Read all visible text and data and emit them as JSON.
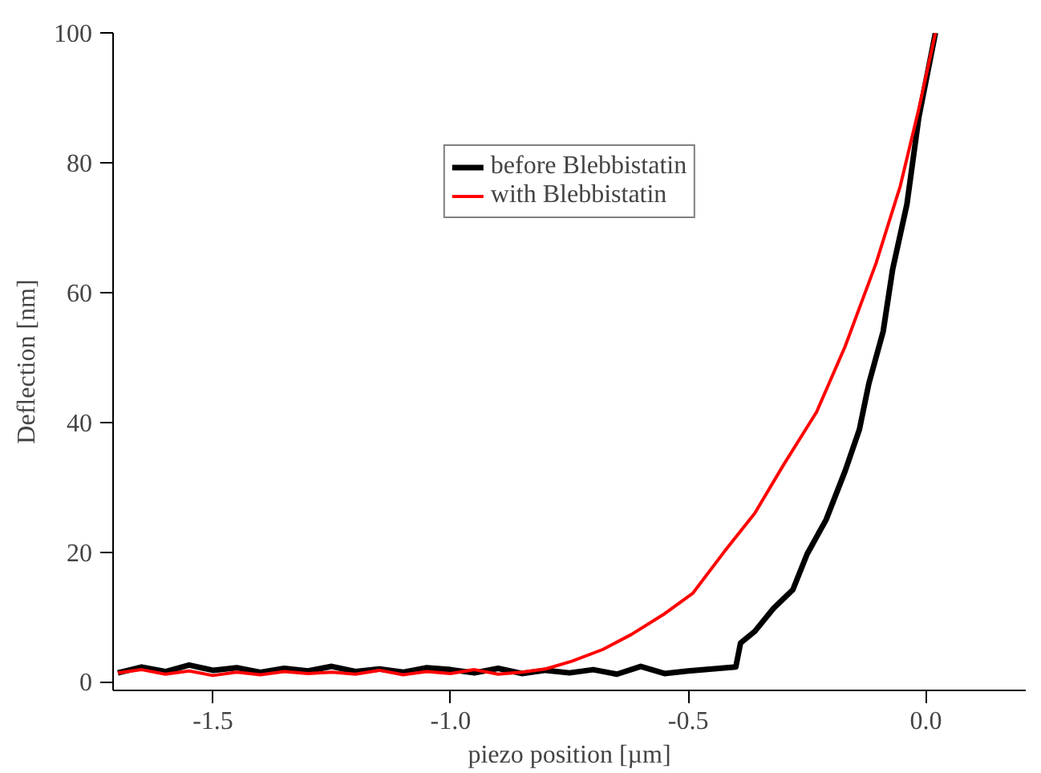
{
  "chart_data": {
    "type": "line",
    "xlabel": "piezo position [µm]",
    "ylabel": "Deflection [nm]",
    "xlim": [
      -1.71,
      0.21
    ],
    "ylim": [
      -1.3,
      100
    ],
    "xticks": [
      {
        "value": -1.5,
        "label": "-1.5"
      },
      {
        "value": -1.0,
        "label": "-1.0"
      },
      {
        "value": -0.5,
        "label": "-0.5"
      },
      {
        "value": 0.0,
        "label": "0.0"
      }
    ],
    "yticks": [
      0,
      20,
      40,
      60,
      80,
      100
    ],
    "grid": false,
    "legend": "top",
    "marker": "none",
    "line_style": "solid",
    "series": [
      {
        "name": "before Blebbistatin",
        "color": "#000000",
        "x": [
          -1.7,
          -1.65,
          -1.6,
          -1.55,
          -1.5,
          -1.45,
          -1.4,
          -1.35,
          -1.3,
          -1.25,
          -1.2,
          -1.15,
          -1.1,
          -1.05,
          -1.0,
          -0.95,
          -0.9,
          -0.85,
          -0.8,
          -0.75,
          -0.7,
          -0.65,
          -0.6,
          -0.55,
          -0.5,
          -0.45,
          -0.4,
          -0.39,
          -0.36,
          -0.32,
          -0.28,
          -0.25,
          -0.21,
          -0.17,
          -0.14,
          -0.12,
          -0.09,
          -0.07,
          -0.04,
          -0.015,
          0.02
        ],
        "values": [
          1.4,
          2.3,
          1.6,
          2.6,
          1.8,
          2.2,
          1.5,
          2.1,
          1.7,
          2.4,
          1.6,
          2.0,
          1.5,
          2.2,
          1.9,
          1.4,
          2.1,
          1.3,
          1.8,
          1.4,
          1.9,
          1.2,
          2.4,
          1.3,
          1.7,
          2.0,
          2.3,
          6,
          7.8,
          11.4,
          14.2,
          19.7,
          25,
          32.5,
          38.9,
          46,
          54,
          63.6,
          73.6,
          87,
          100
        ]
      },
      {
        "name": "with Blebbistatin",
        "color": "#ff0000",
        "x": [
          -1.7,
          -1.65,
          -1.6,
          -1.55,
          -1.5,
          -1.45,
          -1.4,
          -1.35,
          -1.3,
          -1.25,
          -1.2,
          -1.15,
          -1.1,
          -1.05,
          -1.0,
          -0.95,
          -0.9,
          -0.85,
          -0.8,
          -0.745,
          -0.68,
          -0.62,
          -0.55,
          -0.49,
          -0.425,
          -0.36,
          -0.3,
          -0.23,
          -0.17,
          -0.105,
          -0.054,
          -0.015,
          0.02
        ],
        "values": [
          1.4,
          1.9,
          1.2,
          1.7,
          1.0,
          1.5,
          1.1,
          1.6,
          1.3,
          1.5,
          1.2,
          1.8,
          1.1,
          1.6,
          1.3,
          1.9,
          1.2,
          1.5,
          2.0,
          3.2,
          5,
          7.3,
          10.5,
          13.7,
          20,
          26,
          33.4,
          41.6,
          51.7,
          64.5,
          76.4,
          88.3,
          100
        ]
      }
    ]
  }
}
